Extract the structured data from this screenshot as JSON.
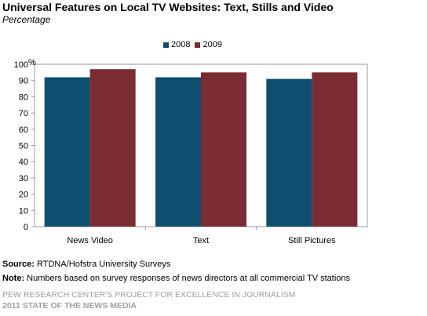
{
  "title": "Universal Features on Local TV Websites: Text, Stills and Video",
  "subtitle": "Percentage",
  "chart_data": {
    "type": "bar",
    "categories": [
      "News Video",
      "Text",
      "Still Pictures"
    ],
    "series": [
      {
        "name": "2008",
        "values": [
          92,
          92,
          91
        ],
        "color": "#0e4e6e"
      },
      {
        "name": "2009",
        "values": [
          97,
          95,
          95
        ],
        "color": "#7a2b34"
      }
    ],
    "yticks": [
      "0",
      "10",
      "20",
      "30",
      "40",
      "50",
      "60",
      "70",
      "80",
      "90",
      "100"
    ],
    "ylim": [
      0,
      100
    ],
    "y_unit": "%",
    "grid": false,
    "legend_position": "top-center"
  },
  "source": {
    "label": "Source:",
    "text": " RTDNA/Hofstra University Surveys"
  },
  "note": {
    "label": "Note:",
    "text": " Numbers based on survey responses of news directors at all commercial TV stations"
  },
  "footer": {
    "line1": "PEW RESEARCH CENTER'S PROJECT FOR EXCELLENCE IN JOURNALISM",
    "line2": "2011 STATE OF THE NEWS MEDIA"
  }
}
